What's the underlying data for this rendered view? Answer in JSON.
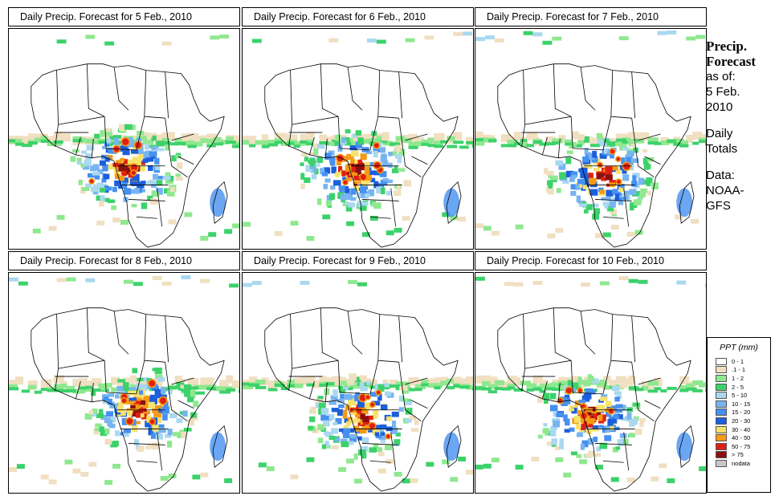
{
  "panels": [
    {
      "title": "Daily Precip. Forecast for  5 Feb., 2010",
      "seed": 11
    },
    {
      "title": "Daily Precip. Forecast for  6 Feb., 2010",
      "seed": 23
    },
    {
      "title": "Daily Precip. Forecast for  7 Feb., 2010",
      "seed": 37
    },
    {
      "title": "Daily Precip. Forecast for  8 Feb., 2010",
      "seed": 41
    },
    {
      "title": "Daily Precip. Forecast for  9 Feb., 2010",
      "seed": 53
    },
    {
      "title": "Daily Precip. Forecast for  10 Feb., 2010",
      "seed": 67
    }
  ],
  "side": {
    "heading_line1": "Precip.",
    "heading_line2": "Forecast",
    "as_of": "as of:",
    "date_line1": "5 Feb.",
    "date_line2": "2010",
    "totals_line1": "Daily",
    "totals_line2": "Totals",
    "data_label": "Data:",
    "source_line1": "NOAA-",
    "source_line2": "GFS"
  },
  "legend": {
    "title": "PPT (mm)",
    "items": [
      {
        "label": "0 - 1",
        "color": "#ffffff"
      },
      {
        "label": ".1 - 1",
        "color": "#f0dfc0"
      },
      {
        "label": "1 - 2",
        "color": "#8fe88f"
      },
      {
        "label": "2 - 5",
        "color": "#3cd26a"
      },
      {
        "label": "5 - 10",
        "color": "#aad8f0"
      },
      {
        "label": "10 - 15",
        "color": "#78b4f0"
      },
      {
        "label": "15 - 20",
        "color": "#4690f0"
      },
      {
        "label": "20 - 30",
        "color": "#1c5fdc"
      },
      {
        "label": "30 - 40",
        "color": "#f7e26b"
      },
      {
        "label": "40 - 50",
        "color": "#f59a14"
      },
      {
        "label": "50 - 75",
        "color": "#e02010"
      },
      {
        "label": "> 75",
        "color": "#8c0f0f"
      },
      {
        "label": "nodata",
        "color": "#c8c8c8"
      }
    ]
  }
}
